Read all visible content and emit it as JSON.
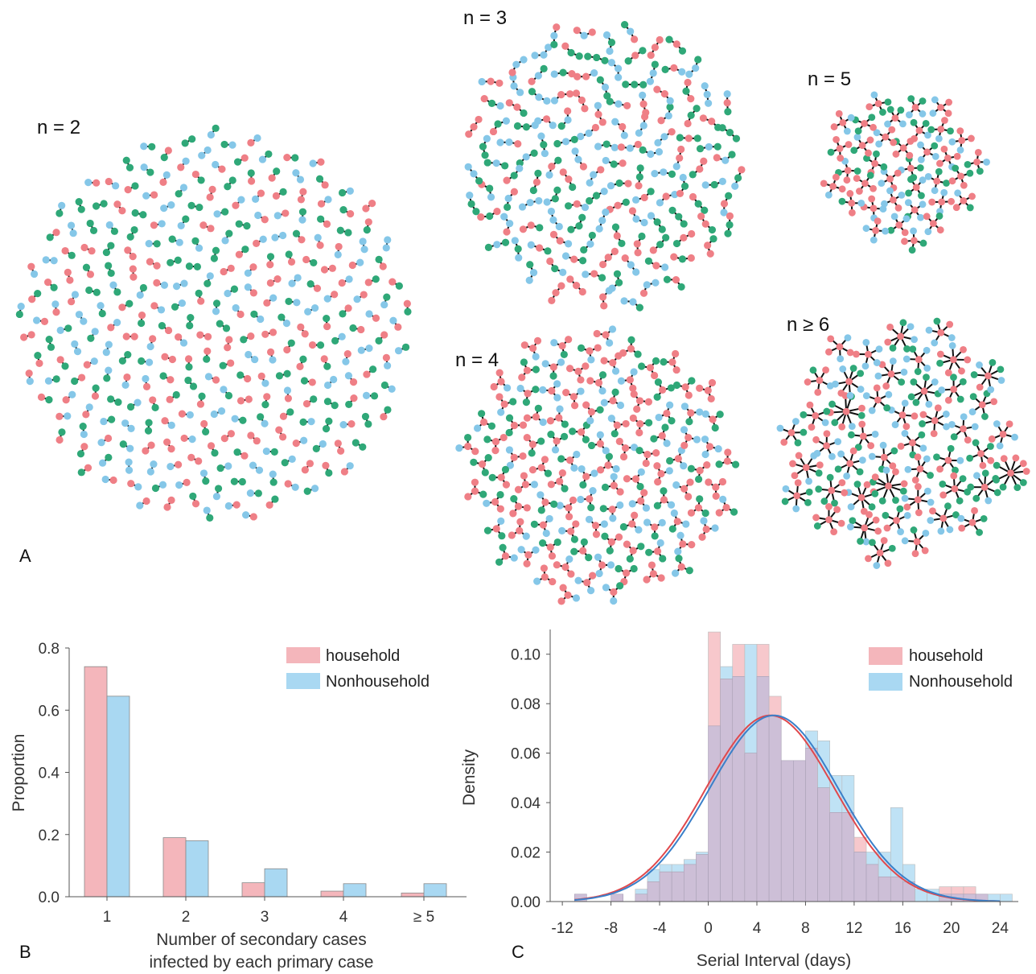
{
  "panel_labels": {
    "a": "A",
    "b": "B",
    "c": "C"
  },
  "colors": {
    "household": "#f4b6bb",
    "nonhousehold": "#a9d8f2",
    "overlap": "#cdbfd7",
    "household_line": "#e0484c",
    "nonhousehold_line": "#3a7fc9",
    "node_red": "#ef7f86",
    "node_blue": "#85c7e8",
    "node_green": "#2fa878",
    "edge": "#111111"
  },
  "clusters": [
    {
      "label": "n = 2",
      "nodes_per_cluster": 2
    },
    {
      "label": "n = 3",
      "nodes_per_cluster": 3
    },
    {
      "label": "n = 4",
      "nodes_per_cluster": 4
    },
    {
      "label": "n = 5",
      "nodes_per_cluster": 5
    },
    {
      "label": "n ≥ 6",
      "nodes_per_cluster": 7
    }
  ],
  "chart_data": [
    {
      "type": "bar",
      "panel": "B",
      "categories": [
        "1",
        "2",
        "3",
        "4",
        "≥ 5"
      ],
      "series": [
        {
          "name": "household",
          "values": [
            0.74,
            0.19,
            0.045,
            0.018,
            0.012
          ]
        },
        {
          "name": "Nonhousehold",
          "values": [
            0.645,
            0.18,
            0.09,
            0.042,
            0.042
          ]
        }
      ],
      "xlabel": "Number of secondary cases\ninfected by each primary case",
      "xlabel_lines": [
        "Number of secondary cases",
        "infected by each primary case"
      ],
      "ylabel": "Proportion",
      "ylim": [
        0,
        0.8
      ],
      "yticks": [
        "0.0",
        "0.2",
        "0.4",
        "0.6",
        "0.8"
      ],
      "legend": "top-right"
    },
    {
      "type": "bar",
      "subtype": "histogram-with-density",
      "panel": "C",
      "bin_width": 1,
      "bins_start": [
        -12,
        -11,
        -10,
        -9,
        -8,
        -7,
        -6,
        -5,
        -4,
        -3,
        -2,
        -1,
        0,
        1,
        2,
        3,
        4,
        5,
        6,
        7,
        8,
        9,
        10,
        11,
        12,
        13,
        14,
        15,
        16,
        17,
        18,
        19,
        20,
        21,
        22,
        23,
        24
      ],
      "series": [
        {
          "name": "household",
          "values": [
            0,
            0.003,
            0,
            0,
            0.003,
            0,
            0.003,
            0.008,
            0.012,
            0.012,
            0.015,
            0.019,
            0.109,
            0.09,
            0.104,
            0.06,
            0.104,
            0.083,
            0.057,
            0.057,
            0.062,
            0.046,
            0.036,
            0.036,
            0.026,
            0.015,
            0.01,
            0.01,
            0.008,
            0,
            0,
            0.006,
            0.006,
            0.006,
            0.003,
            0,
            0
          ]
        },
        {
          "name": "Nonhousehold",
          "values": [
            0,
            0.003,
            0,
            0,
            0.003,
            0,
            0.005,
            0.013,
            0.015,
            0.015,
            0.017,
            0.02,
            0.071,
            0.095,
            0.091,
            0.104,
            0.091,
            0.075,
            0.057,
            0.057,
            0.069,
            0.065,
            0.051,
            0.051,
            0.02,
            0.02,
            0.02,
            0.038,
            0.015,
            0.005,
            0.005,
            0.003,
            0.003,
            0.003,
            0.003,
            0.003,
            0.003
          ]
        }
      ],
      "curves": [
        {
          "name": "household",
          "mean": 5.1,
          "sd": 5.3
        },
        {
          "name": "Nonhousehold",
          "mean": 5.4,
          "sd": 5.3
        }
      ],
      "xlabel": "Serial Interval (days)",
      "ylabel": "Density",
      "xlim": [
        -13,
        25.5
      ],
      "ylim": [
        0,
        0.11
      ],
      "xticks": [
        -12,
        -8,
        -4,
        0,
        4,
        8,
        12,
        16,
        20,
        24
      ],
      "xtick_labels": [
        "-12",
        "-8",
        "-4",
        "0",
        "4",
        "8",
        "12",
        "16",
        "20",
        "24"
      ],
      "yticks": [
        0,
        0.02,
        0.04,
        0.06,
        0.08,
        0.1
      ],
      "ytick_labels": [
        "0.00",
        "0.02",
        "0.04",
        "0.06",
        "0.08",
        "0.10"
      ],
      "legend": "top-right"
    }
  ]
}
